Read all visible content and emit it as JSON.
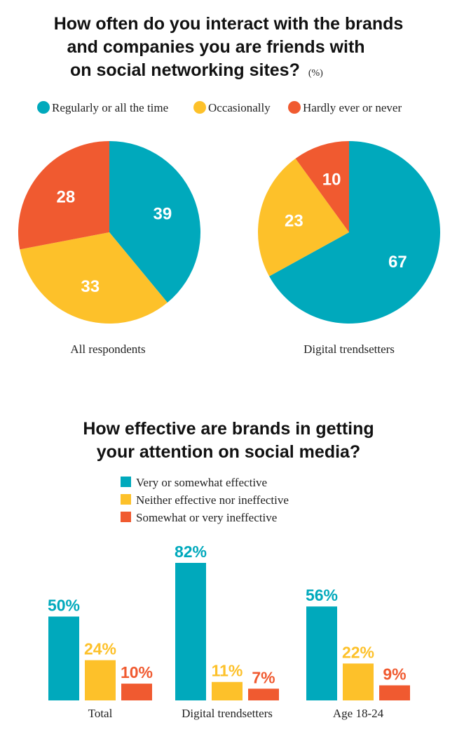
{
  "colors": {
    "regular": "#00a9bc",
    "occasional": "#fdc12a",
    "never": "#f05a30"
  },
  "chart_data": [
    {
      "type": "pie",
      "title": [
        "How often do you interact with the brands",
        "and companies you are friends with",
        "on social networking sites?"
      ],
      "unit": "(%)",
      "legend": [
        "Regularly or all the time",
        "Occasionally",
        "Hardly ever or never"
      ],
      "legend_placement": "top",
      "pies": [
        {
          "label": "All respondents",
          "values": [
            39,
            33,
            28
          ]
        },
        {
          "label": "Digital trendsetters",
          "values": [
            67,
            23,
            10
          ]
        }
      ]
    },
    {
      "type": "bar",
      "title": [
        "How effective are brands in getting",
        "your attention on social media?"
      ],
      "legend": [
        "Very  or somewhat effective",
        "Neither effective nor ineffective",
        "Somewhat  or very ineffective"
      ],
      "legend_placement": "top",
      "categories": [
        "Total",
        "Digital trendsetters",
        "Age 18-24"
      ],
      "series": [
        {
          "name": "Very  or somewhat effective",
          "values": [
            50,
            82,
            56
          ]
        },
        {
          "name": "Neither effective nor ineffective",
          "values": [
            24,
            11,
            22
          ]
        },
        {
          "name": "Somewhat  or very ineffective",
          "values": [
            10,
            7,
            9
          ]
        }
      ],
      "value_suffix": "%",
      "grid": false
    }
  ]
}
